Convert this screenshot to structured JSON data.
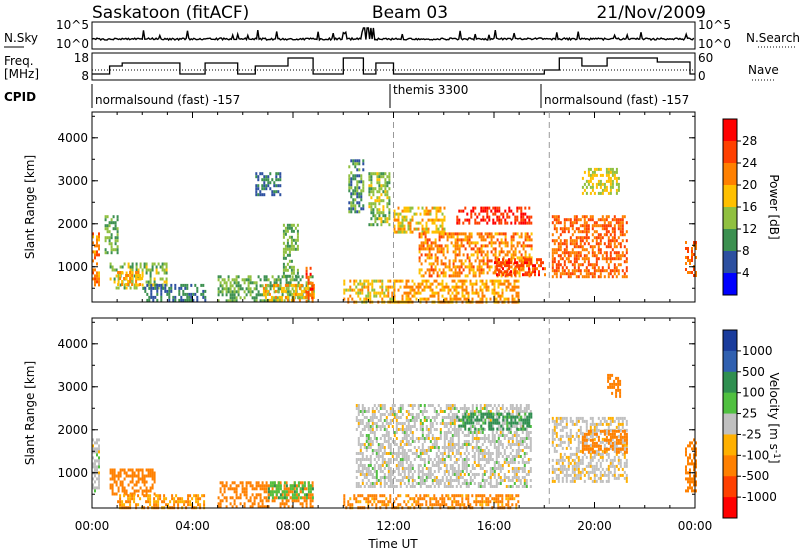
{
  "header": {
    "radar": "Saskatoon (fitACF)",
    "beam": "Beam 03",
    "date": "21/Nov/2009"
  },
  "strip": {
    "nsky_label": "N.Sky",
    "nsky_ticks": [
      "10^5",
      "10^0"
    ],
    "nsearch_label": "N.Search",
    "nsearch_ticks": [
      "10^5",
      "10^0"
    ],
    "freq_label_1": "Freq.",
    "freq_label_2": "[MHz]",
    "freq_ticks": [
      "18",
      "8"
    ],
    "nave_label": "Nave",
    "nave_ticks": [
      "60",
      "0"
    ],
    "cpid_label": "CPID",
    "cpid_segments": [
      {
        "label": "normalsound (fast) -157",
        "start_hr": 0
      },
      {
        "label": "themis 3300",
        "start_hr": 12
      },
      {
        "label": "normalsound (fast) -157",
        "start_hr": 18.2
      }
    ]
  },
  "axes": {
    "x_label": "Time UT",
    "x_ticks": [
      "00:00",
      "04:00",
      "08:00",
      "12:00",
      "16:00",
      "20:00",
      "00:00"
    ],
    "y_label": "Slant Range [km]",
    "y_ticks": [
      "1000",
      "2000",
      "3000",
      "4000"
    ]
  },
  "colorbars": {
    "power_label": "Power [dB]",
    "power_ticks": [
      "28",
      "24",
      "20",
      "16",
      "12",
      "8",
      "4"
    ],
    "power_colors": [
      "#ff0000",
      "#ff4000",
      "#ff8000",
      "#ffc000",
      "#90c040",
      "#3c9050",
      "#2d50a0",
      "#0000ff"
    ],
    "velocity_label": "Velocity [m s",
    "velocity_unit_sup": "-1",
    "velocity_ticks": [
      "1000",
      "500",
      "100",
      "25",
      "-25",
      "-100",
      "-500",
      "-1000"
    ],
    "velocity_colors": [
      "#1a3c9c",
      "#3060b0",
      "#2f8f50",
      "#50c040",
      "#c0c0c0",
      "#ffb000",
      "#ff8000",
      "#ff4000",
      "#ff0000"
    ]
  },
  "chart_data": [
    {
      "type": "heatmap",
      "title": "Power",
      "xlabel": "Time UT",
      "ylabel": "Slant Range [km]",
      "xlim": [
        0,
        24
      ],
      "ylim": [
        180,
        4600
      ],
      "colorbar_label": "Power [dB]",
      "colorbar_range": [
        0,
        32
      ],
      "regions": [
        {
          "t0": 0.0,
          "t1": 0.3,
          "r0": 600,
          "r1": 1800,
          "value": 22
        },
        {
          "t0": 0.5,
          "t1": 1.0,
          "r0": 1300,
          "r1": 2200,
          "value": 12
        },
        {
          "t0": 0.7,
          "t1": 3.0,
          "r0": 500,
          "r1": 1100,
          "value": 14
        },
        {
          "t0": 1.0,
          "t1": 2.0,
          "r0": 600,
          "r1": 900,
          "value": 20
        },
        {
          "t0": 2.0,
          "t1": 4.5,
          "r0": 200,
          "r1": 600,
          "value": 8
        },
        {
          "t0": 5.0,
          "t1": 8.8,
          "r0": 200,
          "r1": 800,
          "value": 12
        },
        {
          "t0": 6.8,
          "t1": 8.8,
          "r0": 200,
          "r1": 600,
          "value": 18
        },
        {
          "t0": 8.5,
          "t1": 8.8,
          "r0": 200,
          "r1": 1000,
          "value": 26
        },
        {
          "t0": 6.5,
          "t1": 7.5,
          "r0": 2700,
          "r1": 3200,
          "value": 8
        },
        {
          "t0": 7.6,
          "t1": 8.2,
          "r0": 800,
          "r1": 2000,
          "value": 12
        },
        {
          "t0": 10.0,
          "t1": 12.0,
          "r0": 200,
          "r1": 700,
          "value": 18
        },
        {
          "t0": 10.2,
          "t1": 10.8,
          "r0": 2300,
          "r1": 3500,
          "value": 10
        },
        {
          "t0": 11.0,
          "t1": 11.8,
          "r0": 2000,
          "r1": 3200,
          "value": 14
        },
        {
          "t0": 12.0,
          "t1": 17.0,
          "r0": 200,
          "r1": 700,
          "value": 20
        },
        {
          "t0": 12.0,
          "t1": 14.0,
          "r0": 1800,
          "r1": 2400,
          "value": 18
        },
        {
          "t0": 13.0,
          "t1": 17.5,
          "r0": 800,
          "r1": 1800,
          "value": 22
        },
        {
          "t0": 14.5,
          "t1": 17.5,
          "r0": 2000,
          "r1": 2400,
          "value": 28
        },
        {
          "t0": 16.0,
          "t1": 18.0,
          "r0": 800,
          "r1": 1200,
          "value": 26
        },
        {
          "t0": 18.3,
          "t1": 21.3,
          "r0": 800,
          "r1": 2200,
          "value": 24
        },
        {
          "t0": 19.5,
          "t1": 21.0,
          "r0": 2700,
          "r1": 3300,
          "value": 16
        },
        {
          "t0": 23.6,
          "t1": 24.0,
          "r0": 800,
          "r1": 1600,
          "value": 24
        }
      ]
    },
    {
      "type": "heatmap",
      "title": "Velocity",
      "xlabel": "Time UT",
      "ylabel": "Slant Range [km]",
      "xlim": [
        0,
        24
      ],
      "ylim": [
        180,
        4600
      ],
      "colorbar_label": "Velocity [m s-1]",
      "colorbar_range": [
        -1000,
        1000
      ],
      "regions": [
        {
          "t0": 0.0,
          "t1": 0.3,
          "r0": 600,
          "r1": 1800,
          "value": 0
        },
        {
          "t0": 0.7,
          "t1": 2.5,
          "r0": 500,
          "r1": 1100,
          "value": -300
        },
        {
          "t0": 1.0,
          "t1": 4.5,
          "r0": 200,
          "r1": 500,
          "value": -100
        },
        {
          "t0": 5.0,
          "t1": 8.8,
          "r0": 200,
          "r1": 800,
          "value": -150
        },
        {
          "t0": 7.0,
          "t1": 8.8,
          "r0": 400,
          "r1": 800,
          "value": 80
        },
        {
          "t0": 10.0,
          "t1": 17.0,
          "r0": 200,
          "r1": 500,
          "value": -120
        },
        {
          "t0": 10.5,
          "t1": 17.5,
          "r0": 700,
          "r1": 2600,
          "value": 0
        },
        {
          "t0": 14.5,
          "t1": 17.5,
          "r0": 2000,
          "r1": 2400,
          "value": 120
        },
        {
          "t0": 18.3,
          "t1": 21.3,
          "r0": 800,
          "r1": 2300,
          "value": -10
        },
        {
          "t0": 19.5,
          "t1": 21.3,
          "r0": 1500,
          "r1": 2000,
          "value": -250
        },
        {
          "t0": 20.5,
          "t1": 21.0,
          "r0": 2800,
          "r1": 3300,
          "value": -400
        },
        {
          "t0": 23.6,
          "t1": 24.0,
          "r0": 600,
          "r1": 1800,
          "value": -200
        }
      ]
    }
  ]
}
